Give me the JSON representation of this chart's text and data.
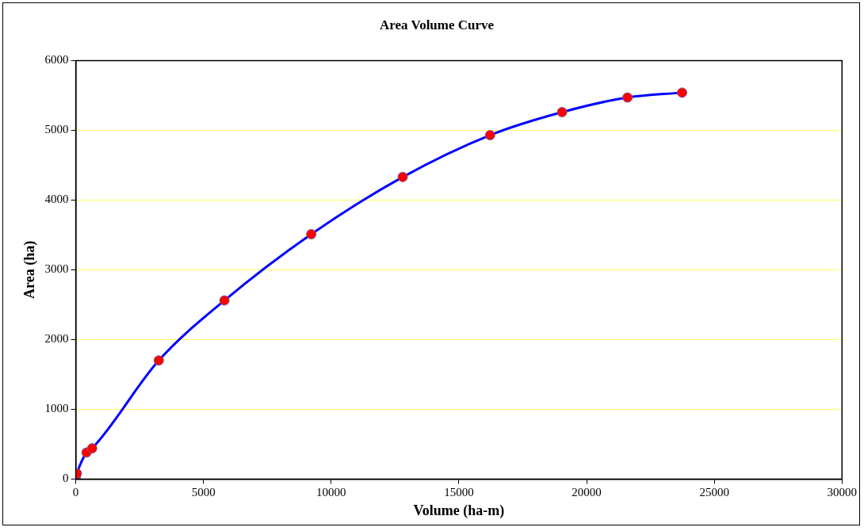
{
  "chart_data": {
    "type": "line",
    "title": "Area Volume Curve",
    "xlabel": "Volume (ha-m)",
    "ylabel": "Area (ha)",
    "x": [
      0,
      40,
      420,
      640,
      3250,
      5820,
      9220,
      12800,
      16220,
      19040,
      21600,
      23740
    ],
    "series": [
      {
        "color": "#0000ff",
        "values": [
          30,
          80,
          380,
          440,
          1700,
          2560,
          3510,
          4330,
          4930,
          5260,
          5470,
          5540
        ]
      }
    ],
    "xlim": [
      0,
      30000
    ],
    "xticks": [
      0,
      5000,
      10000,
      15000,
      20000,
      25000,
      30000
    ],
    "ylim": [
      0,
      6000
    ],
    "yticks": [
      0,
      1000,
      2000,
      3000,
      4000,
      5000,
      6000
    ],
    "grid": "y",
    "legend": false,
    "marker": "circle",
    "line_style": "solid"
  }
}
